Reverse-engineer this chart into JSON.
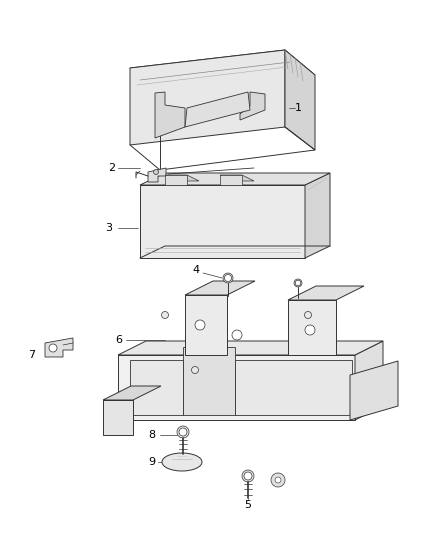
{
  "background_color": "#ffffff",
  "line_color": "#333333",
  "text_color": "#000000",
  "fig_width": 4.38,
  "fig_height": 5.33,
  "dpi": 100,
  "lw": 0.7,
  "cover_color": "#f0f0f0",
  "cover_shade": "#d8d8d8",
  "cover_dark": "#c0c0c0",
  "batt_color": "#f2f2f2",
  "batt_shade": "#dcdcdc",
  "batt_dark": "#c8c8c8",
  "tray_color": "#f4f4f4",
  "tray_shade": "#e0e0e0"
}
